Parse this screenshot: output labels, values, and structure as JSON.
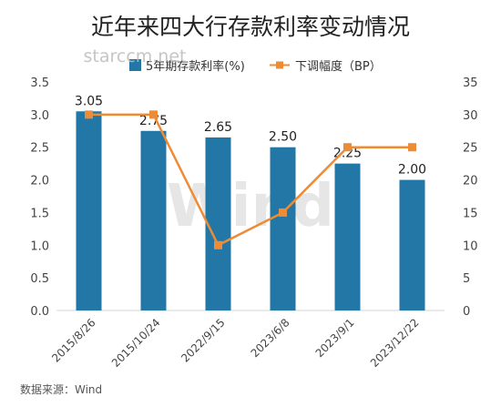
{
  "chart_data": {
    "type": "bar+line",
    "title": "近年来四大行存款利率变动情况",
    "categories": [
      "2015/8/26",
      "2015/10/24",
      "2022/9/15",
      "2023/6/8",
      "2023/9/1",
      "2023/12/22"
    ],
    "series": [
      {
        "name": "5年期存款利率(%)",
        "type": "bar",
        "axis": "left",
        "values": [
          3.05,
          2.75,
          2.65,
          2.5,
          2.25,
          2.0
        ],
        "data_labels": [
          "3.05",
          "2.75",
          "2.65",
          "2.50",
          "2.25",
          "2.00"
        ],
        "color": "#2277a6"
      },
      {
        "name": "下调幅度（BP）",
        "type": "line",
        "axis": "right",
        "values": [
          30,
          30,
          10,
          15,
          25,
          25
        ],
        "color": "#ed8c35"
      }
    ],
    "y_left": {
      "ylim": [
        0,
        3.5
      ],
      "ticks": [
        "0.0",
        "0.5",
        "1.0",
        "1.5",
        "2.0",
        "2.5",
        "3.0",
        "3.5"
      ]
    },
    "y_right": {
      "ylim": [
        0,
        35
      ],
      "ticks": [
        "0",
        "5",
        "10",
        "15",
        "20",
        "25",
        "30",
        "35"
      ]
    },
    "legend_position": "top-center",
    "grid": false
  },
  "watermark_text": "starccm.net",
  "wind_watermark": "Wind",
  "source": "数据来源：Wind"
}
